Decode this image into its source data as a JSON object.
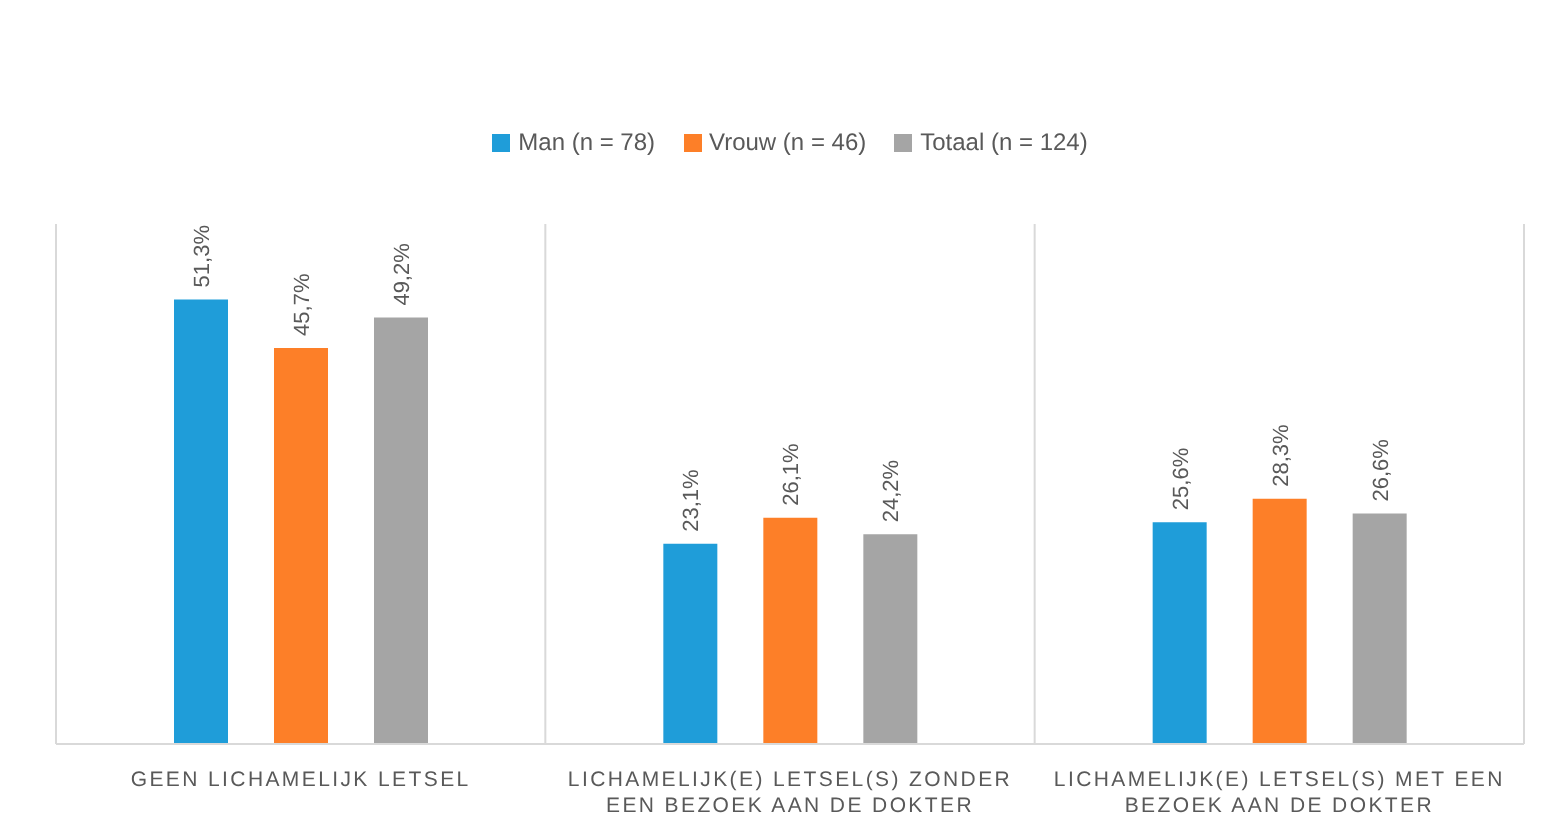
{
  "chart_data": {
    "type": "bar",
    "categories": [
      "GEEN LICHAMELIJK LETSEL",
      "LICHAMELIJK(E) LETSEL(S) ZONDER EEN BEZOEK AAN DE DOKTER",
      "LICHAMELIJK(E) LETSEL(S) MET EEN BEZOEK AAN DE DOKTER"
    ],
    "series": [
      {
        "name": "Man (n = 78)",
        "color": "#1f9dd9",
        "values": [
          51.3,
          23.1,
          25.6
        ],
        "value_labels": [
          "51,3%",
          "23,1%",
          "25,6%"
        ]
      },
      {
        "name": "Vrouw (n = 46)",
        "color": "#fd7f28",
        "values": [
          45.7,
          26.1,
          28.3
        ],
        "value_labels": [
          "45,7%",
          "26,1%",
          "28,3%"
        ]
      },
      {
        "name": "Totaal (n = 124)",
        "color": "#a5a5a5",
        "values": [
          49.2,
          24.2,
          26.6
        ],
        "value_labels": [
          "49,2%",
          "24,2%",
          "26,6%"
        ]
      }
    ],
    "grid": "x",
    "legend": "top",
    "tick_labels": "x"
  }
}
